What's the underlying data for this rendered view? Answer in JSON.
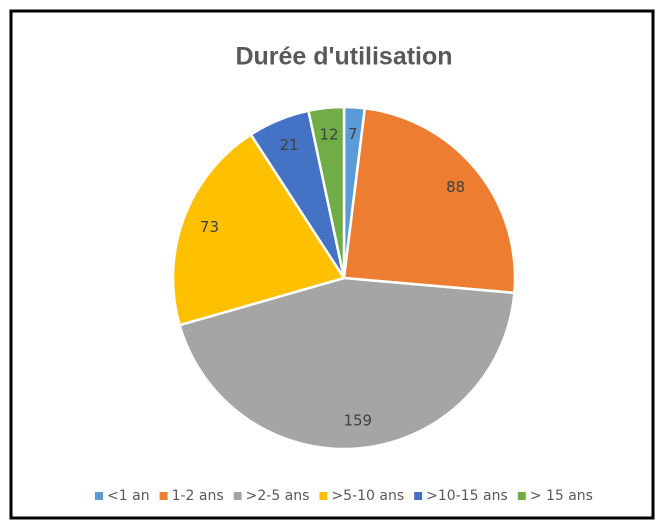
{
  "chart_data": {
    "type": "pie",
    "title": "Durée d'utilisation",
    "categories": [
      "<1 an",
      "1-2 ans",
      ">2-5 ans",
      ">5-10 ans",
      ">10-15 ans",
      "> 15 ans"
    ],
    "values": [
      7,
      88,
      159,
      73,
      21,
      12
    ],
    "colors": [
      "#5b9bd5",
      "#ed7d31",
      "#a5a5a5",
      "#ffc000",
      "#4472c4",
      "#70ad47"
    ],
    "legend": "bottom"
  }
}
